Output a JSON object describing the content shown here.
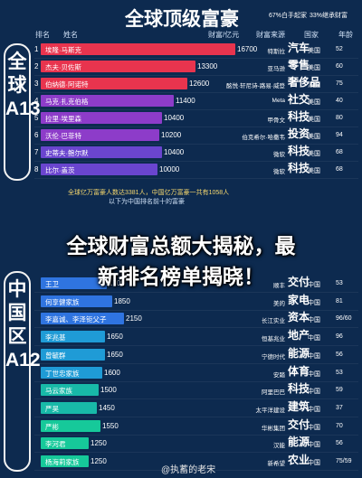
{
  "header": {
    "title": "全球顶级富豪",
    "stat1": "67%白手起家",
    "stat2": "33%继承财富"
  },
  "table_headers": {
    "rank": "排名",
    "name": "姓名",
    "wealth": "财富/亿元",
    "source": "财富来源",
    "country": "国家",
    "age": "年龄"
  },
  "global": {
    "side_label": "全球A13",
    "notes": [
      "全球亿万富豪人数达3381人，中国亿万富豪一共有1058人",
      "以下为中国排名前十的富豪"
    ]
  },
  "china": {
    "side_label": "中国区A12"
  },
  "overlay": {
    "line1": "全球财富总额大揭秘，最",
    "line2": "新排名榜单揭晓！"
  },
  "watermark": "@执蓄的老宋",
  "chart_data": [
    {
      "type": "bar",
      "title": "全球顶级富豪",
      "categories": [
        "埃隆·马斯克",
        "杰夫·贝佐斯",
        "伯纳德·阿诺特",
        "马克·扎克伯格",
        "拉里·埃里森",
        "沃伦·巴菲特",
        "史蒂夫·鲍尔默",
        "比尔·盖茨"
      ],
      "ranks": [
        "1",
        "2",
        "3",
        "4",
        "5",
        "6",
        "7",
        "8"
      ],
      "values": [
        16700,
        13300,
        12600,
        11400,
        10400,
        10200,
        10400,
        10000
      ],
      "sources": [
        "特斯拉",
        "亚马逊",
        "酩悦·轩尼诗-路易·威登",
        "Meta",
        "甲骨文",
        "伯克希尔·哈撒韦",
        "微软",
        "微软"
      ],
      "industries": [
        "汽车",
        "零售",
        "奢侈品",
        "社交",
        "科技",
        "投资",
        "科技",
        "科技"
      ],
      "countries": [
        "美国",
        "美国",
        "法国",
        "美国",
        "美国",
        "美国",
        "美国",
        "美国"
      ],
      "ages": [
        "52",
        "60",
        "75",
        "40",
        "80",
        "94",
        "68",
        "68"
      ],
      "colors": [
        "#e8344e",
        "#e8344e",
        "#e8344e",
        "#8d3cc9",
        "#8d3cc9",
        "#8d3cc9",
        "#6a45cf",
        "#6a45cf"
      ]
    },
    {
      "type": "bar",
      "title": "",
      "categories": [
        "王卫",
        "何享健家族",
        "李嘉诚、李泽钜父子",
        "李兆基",
        "曾毓群",
        "丁世忠家族",
        "马云家族",
        "严昊",
        "严彬",
        "李河君",
        "杨海莉家族"
      ],
      "ranks": [
        "",
        "",
        "",
        "",
        "",
        "",
        "",
        "",
        "",
        "",
        ""
      ],
      "values": [
        1700,
        1850,
        2150,
        1650,
        1650,
        1600,
        1500,
        1450,
        1550,
        1250,
        1250
      ],
      "sources": [
        "顺丰",
        "美的",
        "长江实业",
        "恒基兆业",
        "宁德时代",
        "安踏",
        "阿里巴巴",
        "太平洋建设",
        "华彬集团",
        "汉能",
        "新希望"
      ],
      "industries": [
        "交付",
        "家电",
        "资本",
        "地产",
        "能源",
        "体育",
        "科技",
        "建筑",
        "交付",
        "能源",
        "农业"
      ],
      "countries": [
        "中国",
        "中国",
        "中国",
        "中国",
        "中国",
        "中国",
        "中国",
        "中国",
        "中国",
        "中国",
        "中国"
      ],
      "ages": [
        "53",
        "81",
        "96/60",
        "96",
        "56",
        "53",
        "59",
        "37",
        "70",
        "56",
        "75/59"
      ],
      "colors": [
        "#2f74e0",
        "#2f74e0",
        "#2f74e0",
        "#1f9bd6",
        "#1f9bd6",
        "#1f9bd6",
        "#18b9a8",
        "#18b9a8",
        "#16c99a",
        "#16c99a",
        "#16c99a"
      ]
    }
  ]
}
